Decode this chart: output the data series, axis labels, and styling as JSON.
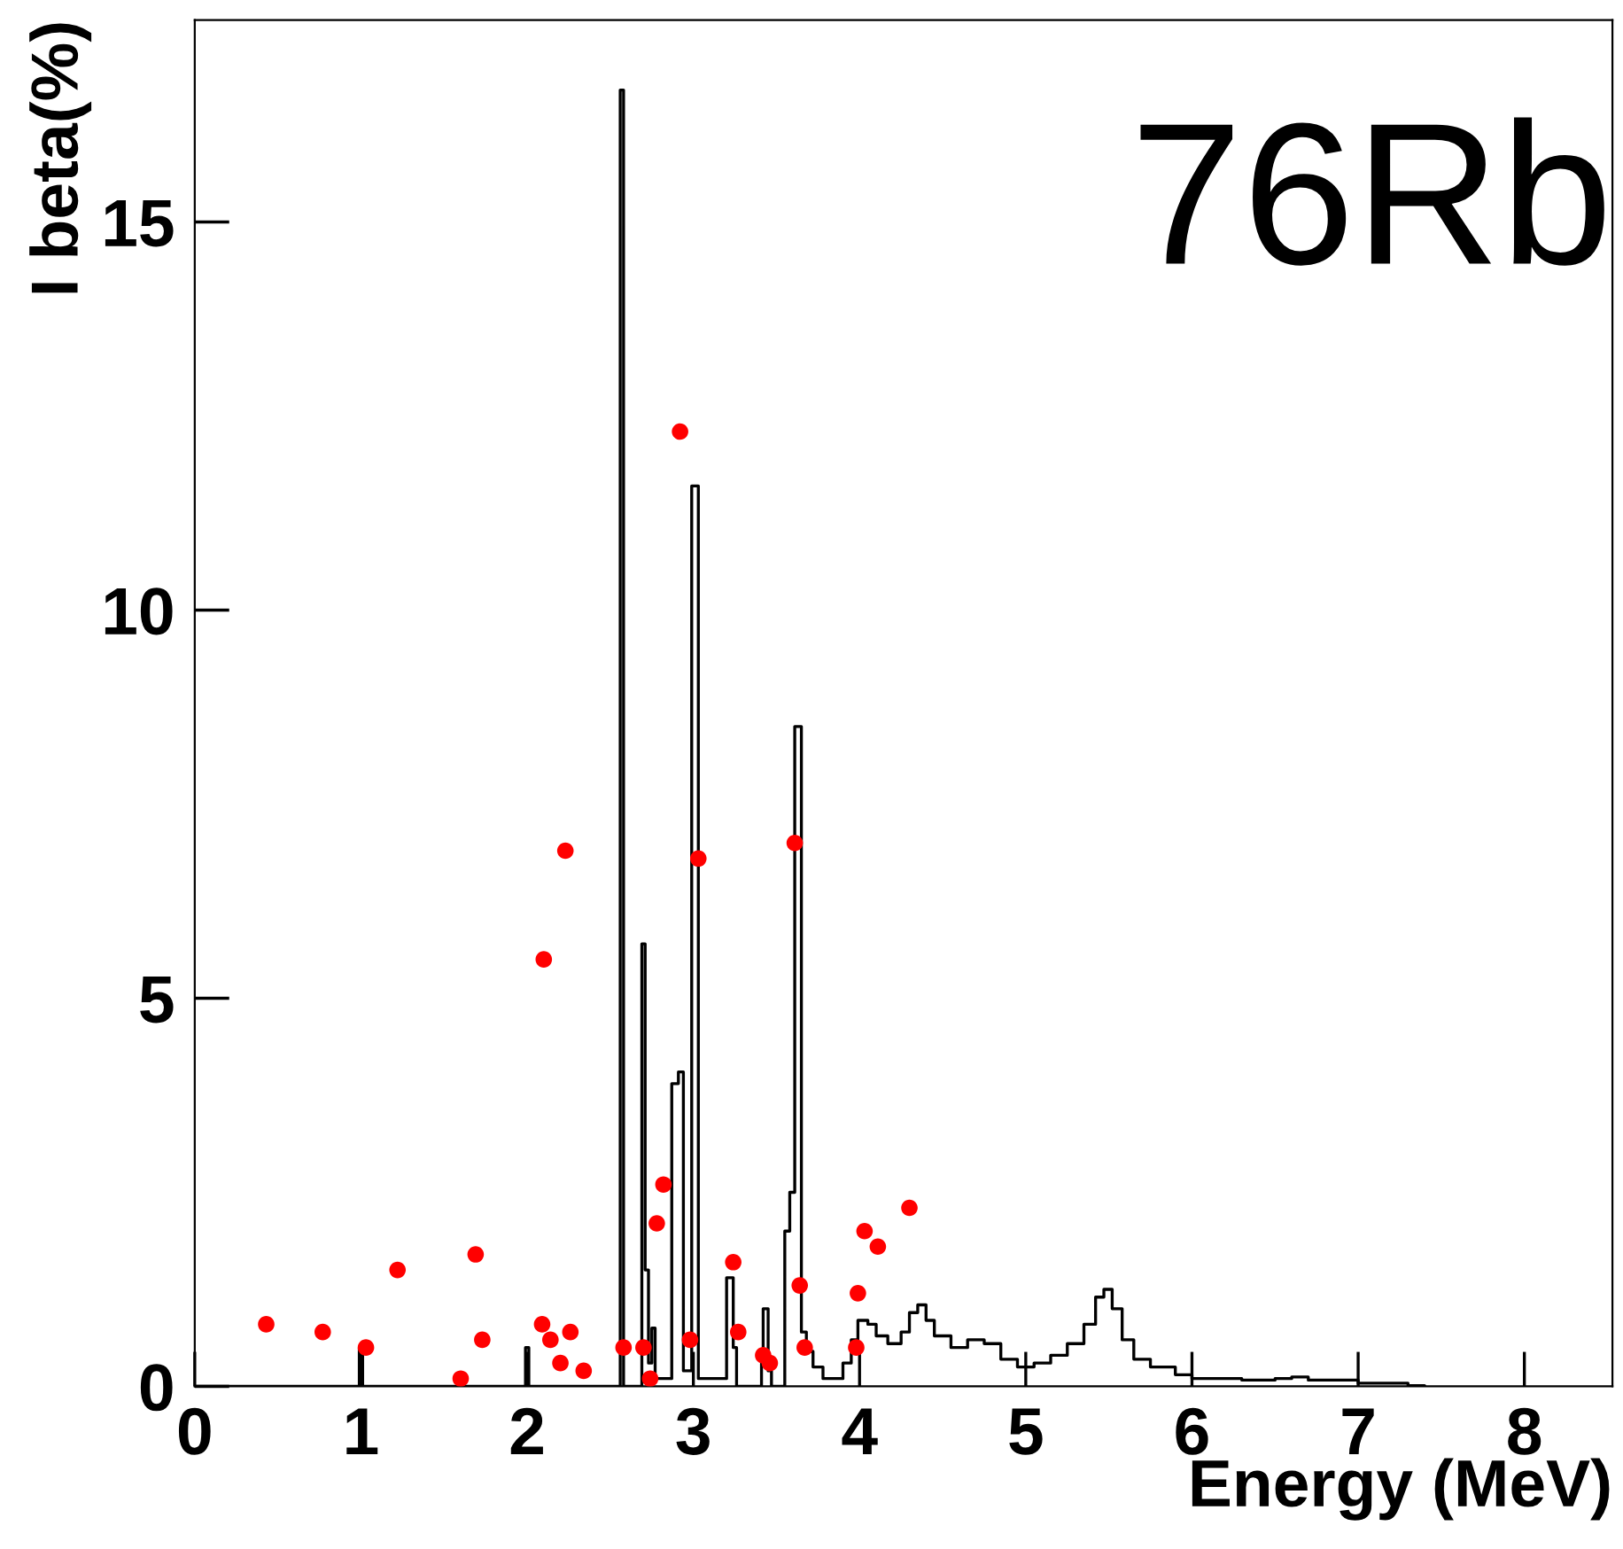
{
  "chart_data": {
    "type": "step",
    "xlabel": "Energy (MeV)",
    "ylabel": "I beta(%)",
    "annotations": [
      "76Rb"
    ],
    "xlim": [
      0,
      8.53
    ],
    "ylim": [
      0,
      17.6
    ],
    "xticks": [
      0,
      1,
      2,
      3,
      4,
      5,
      6,
      7,
      8
    ],
    "yticks": [
      0,
      5,
      10,
      15
    ],
    "grid": false,
    "legend": false,
    "series": [
      {
        "color": "#000000",
        "x": [
          0,
          0.99,
          1.01,
          1.99,
          2.01,
          2.56,
          2.58,
          2.69,
          2.71,
          2.73,
          2.75,
          2.77,
          2.87,
          2.91,
          2.94,
          2.99,
          3.03,
          3.2,
          3.24,
          3.26,
          3.41,
          3.42,
          3.45,
          3.47,
          3.55,
          3.58,
          3.61,
          3.65,
          3.68,
          3.72,
          3.78,
          3.84,
          3.9,
          3.95,
          3.99,
          4.05,
          4.1,
          4.17,
          4.25,
          4.3,
          4.35,
          4.4,
          4.45,
          4.55,
          4.65,
          4.75,
          4.85,
          4.95,
          5.05,
          5.15,
          5.25,
          5.35,
          5.42,
          5.47,
          5.52,
          5.58,
          5.65,
          5.75,
          5.9,
          6.0,
          6.3,
          6.5,
          6.6,
          6.7,
          7.0,
          7.3,
          7.4
        ],
        "values": [
          0,
          0.5,
          0,
          0.5,
          0,
          16.7,
          0,
          5.7,
          1.5,
          0.3,
          0.75,
          0.1,
          3.9,
          4.05,
          0.2,
          11.6,
          0.1,
          1.4,
          0.5,
          0,
          0.3,
          1.0,
          0.2,
          0,
          2.0,
          2.5,
          8.5,
          0.7,
          0.45,
          0.25,
          0.1,
          0.1,
          0.3,
          0.6,
          0.85,
          0.8,
          0.65,
          0.55,
          0.7,
          0.95,
          1.05,
          0.85,
          0.65,
          0.5,
          0.6,
          0.55,
          0.35,
          0.25,
          0.3,
          0.4,
          0.55,
          0.8,
          1.15,
          1.25,
          1.0,
          0.6,
          0.35,
          0.25,
          0.15,
          0.1,
          0.08,
          0.1,
          0.12,
          0.08,
          0.04,
          0.01,
          0
        ]
      },
      {
        "type": "scatter",
        "color": "#ff0000",
        "marker": "circle",
        "x": [
          0.43,
          0.77,
          1.03,
          1.22,
          1.6,
          1.69,
          1.73,
          2.09,
          2.1,
          2.14,
          2.23,
          2.2,
          2.26,
          2.34,
          2.58,
          2.7,
          2.74,
          2.78,
          2.82,
          2.92,
          2.98,
          3.03,
          3.24,
          3.27,
          3.42,
          3.46,
          3.61,
          3.64,
          3.67,
          3.98,
          3.99,
          4.03,
          4.11,
          4.3
        ],
        "values": [
          0.8,
          0.7,
          0.5,
          1.5,
          0.1,
          1.7,
          0.6,
          0.8,
          5.5,
          0.6,
          6.9,
          0.3,
          0.7,
          0.2,
          0.5,
          0.5,
          0.1,
          2.1,
          2.6,
          12.3,
          0.6,
          6.8,
          1.6,
          0.7,
          0.4,
          0.3,
          7.0,
          1.3,
          0.5,
          0.5,
          1.2,
          2.0,
          1.8,
          2.3
        ]
      }
    ]
  }
}
